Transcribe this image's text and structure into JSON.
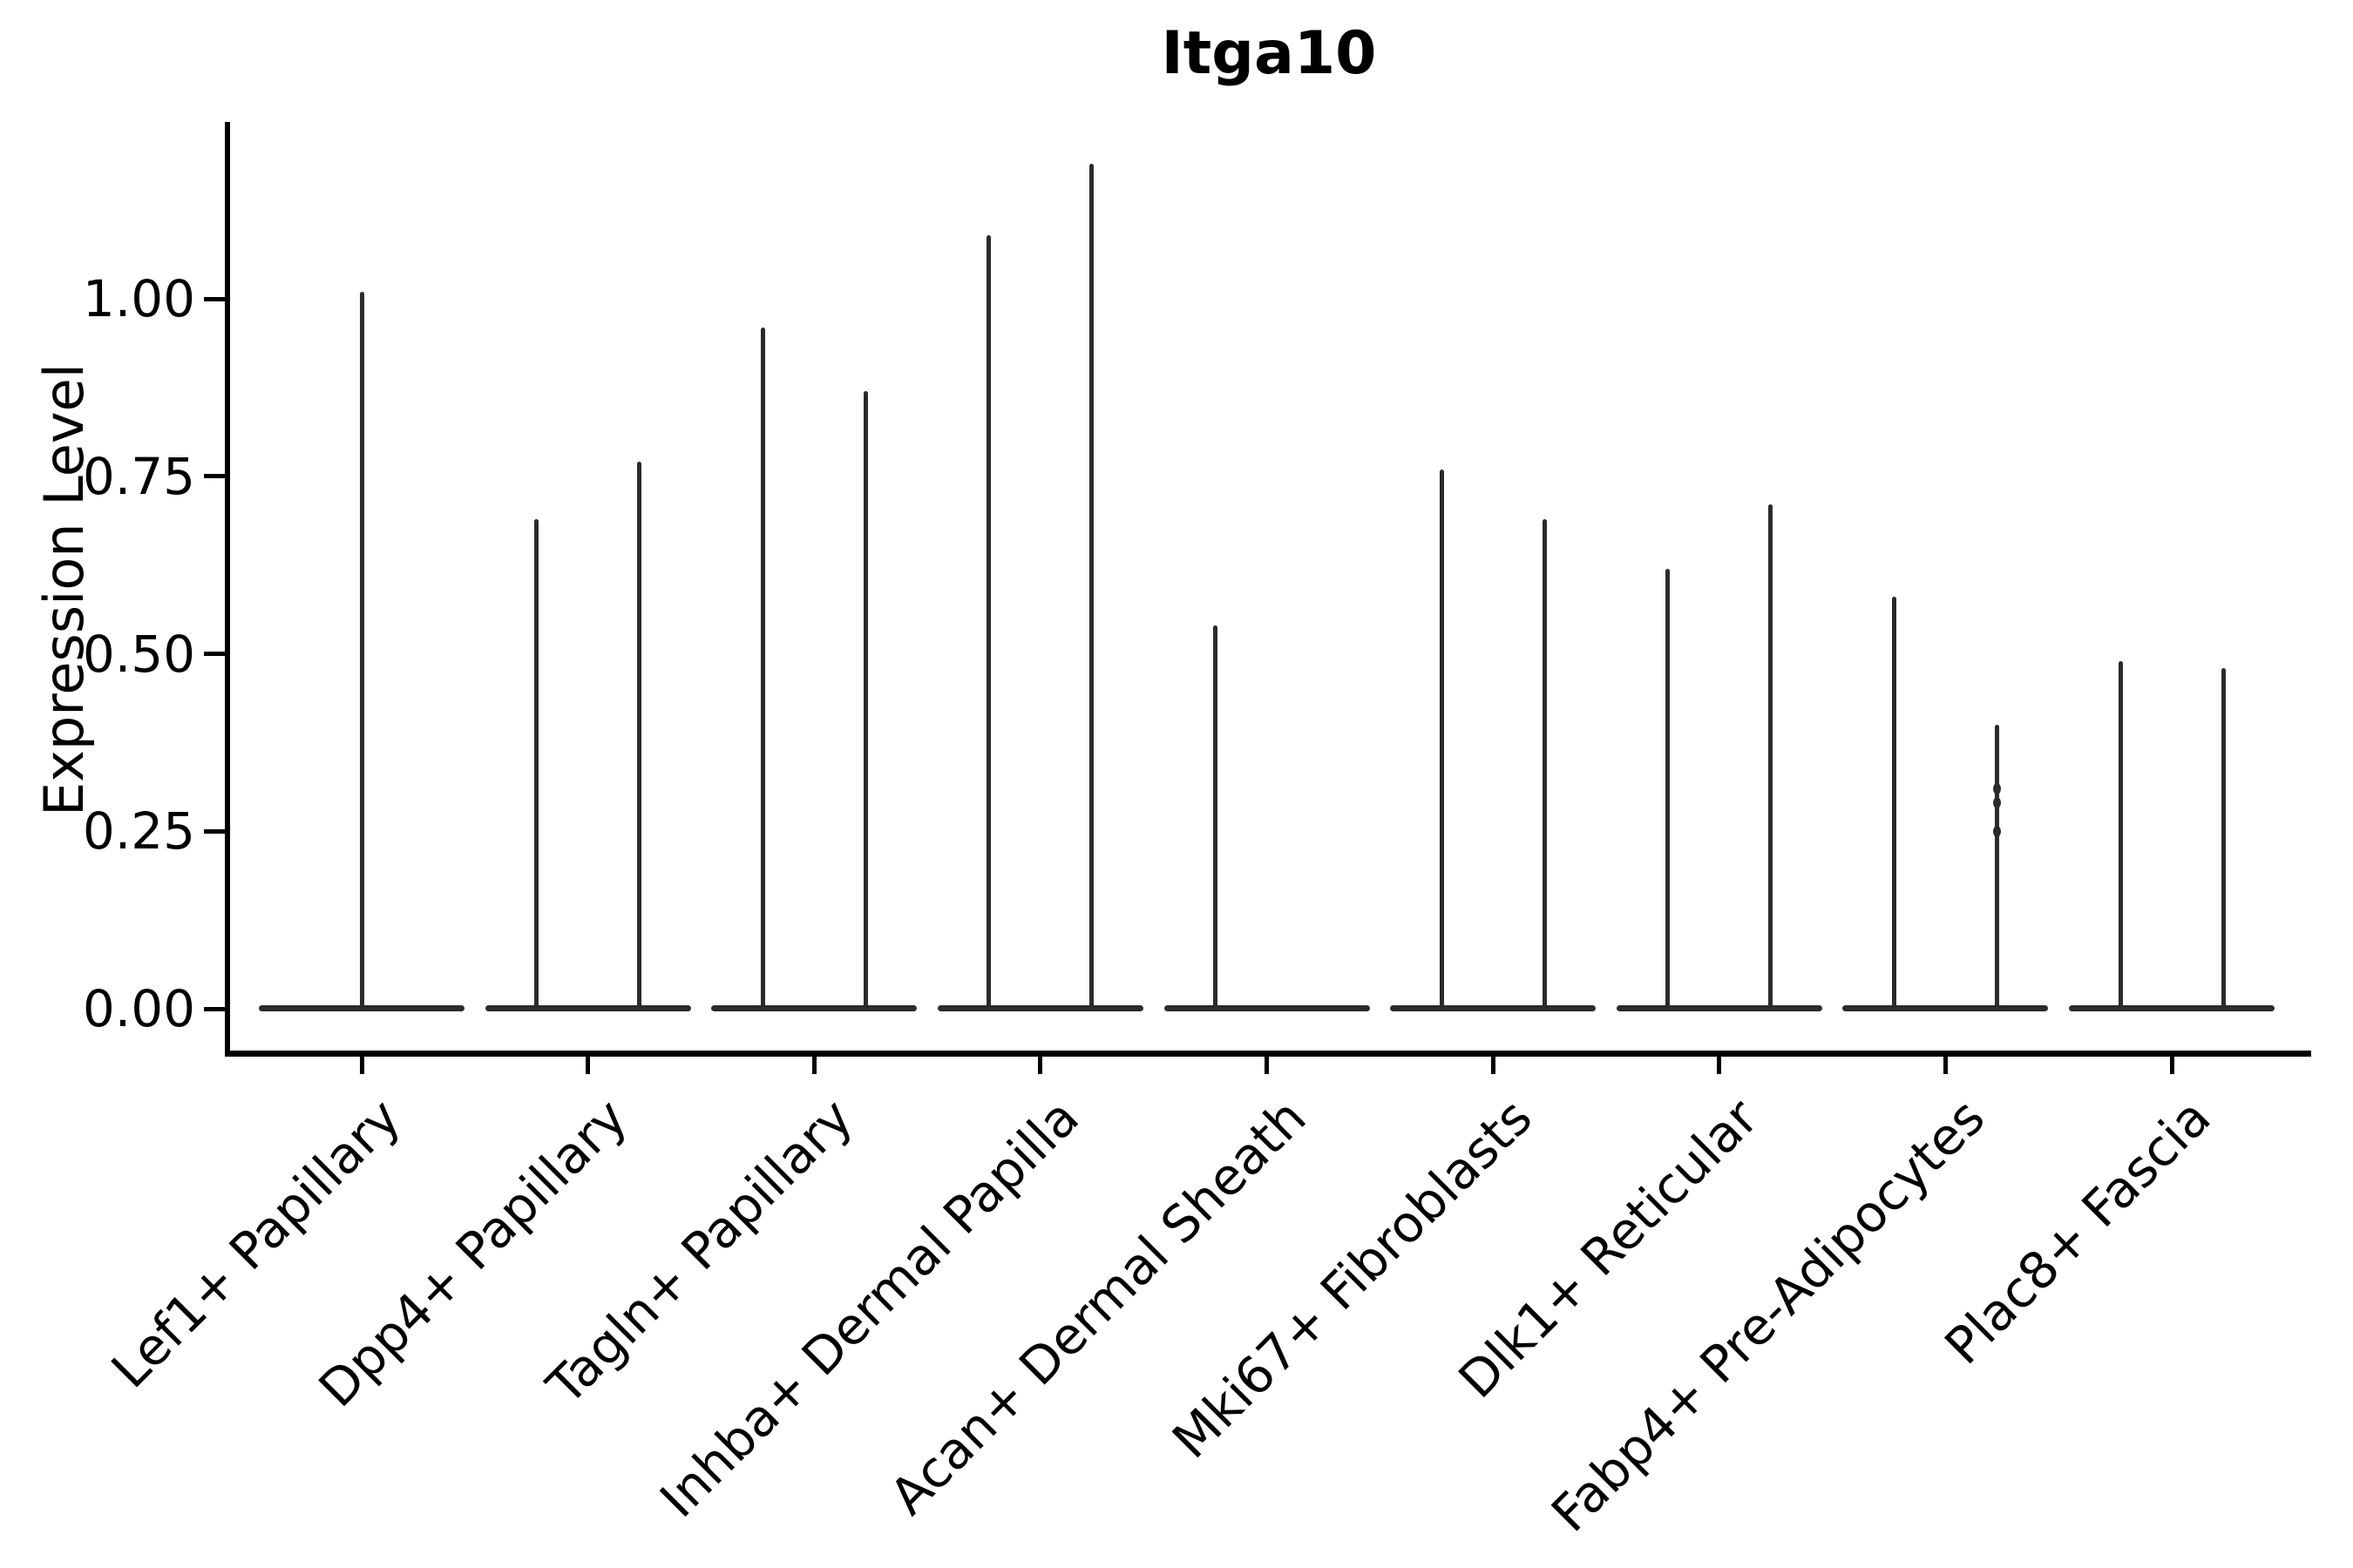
{
  "title": "Itga10",
  "style": {
    "violin_color": "#2b2b2b",
    "spine_color": "#000000",
    "background": "#ffffff",
    "text_color": "#000000"
  },
  "chart_data": {
    "type": "violin",
    "title": "Itga10",
    "xlabel": "",
    "ylabel": "Expression Level",
    "ylim": [
      -0.06,
      1.25
    ],
    "grid": false,
    "legend": "none",
    "yticks": [
      1.0,
      0.75,
      0.5,
      0.25,
      0.0
    ],
    "ytick_labels": [
      "1.00",
      "0.75",
      "0.50",
      "0.25",
      "0.00"
    ],
    "categories": [
      "Lef1+ Papillary",
      "Dpp4+ Papillary",
      "Tagln+ Papillary",
      "Inhba+ Dermal Papilla",
      "Acan+ Dermal Sheath",
      "Mki67+ Fibroblasts",
      "Dlk1+ Reticular",
      "Fabp4+ Pre-Adipocytes",
      "Plac8+ Fascia"
    ],
    "violins": [
      {
        "category": "Lef1+ Papillary",
        "split": [
          {
            "side": "center",
            "max": 1.01
          }
        ]
      },
      {
        "category": "Dpp4+ Papillary",
        "split": [
          {
            "side": "left",
            "max": 0.69
          },
          {
            "side": "right",
            "max": 0.77
          }
        ]
      },
      {
        "category": "Tagln+ Papillary",
        "split": [
          {
            "side": "left",
            "max": 0.96
          },
          {
            "side": "right",
            "max": 0.87
          }
        ]
      },
      {
        "category": "Inhba+ Dermal Papilla",
        "split": [
          {
            "side": "left",
            "max": 1.09
          },
          {
            "side": "right",
            "max": 1.19
          }
        ]
      },
      {
        "category": "Acan+ Dermal Sheath",
        "split": [
          {
            "side": "left",
            "max": 0.54
          },
          {
            "side": "right",
            "max": 0.0
          }
        ]
      },
      {
        "category": "Mki67+ Fibroblasts",
        "split": [
          {
            "side": "left",
            "max": 0.76
          },
          {
            "side": "right",
            "max": 0.69
          }
        ]
      },
      {
        "category": "Dlk1+ Reticular",
        "split": [
          {
            "side": "left",
            "max": 0.62
          },
          {
            "side": "right",
            "max": 0.71
          }
        ]
      },
      {
        "category": "Fabp4+ Pre-Adipocytes",
        "split": [
          {
            "side": "left",
            "max": 0.58
          },
          {
            "side": "right",
            "max": 0.4,
            "bumps": [
              0.25,
              0.29,
              0.31
            ]
          }
        ]
      },
      {
        "category": "Plac8+ Fascia",
        "split": [
          {
            "side": "left",
            "max": 0.49
          },
          {
            "side": "right",
            "max": 0.48
          }
        ]
      }
    ],
    "note": "All violins are collapsed flat at expression 0 (wide base line) with a thin density spike rising to the max expression value."
  }
}
